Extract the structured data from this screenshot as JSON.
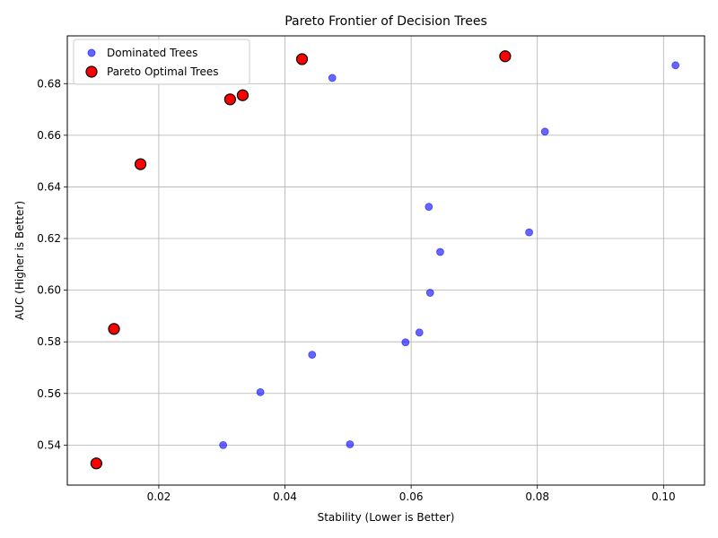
{
  "chart_data": {
    "type": "scatter",
    "title": "Pareto Frontier of Decision Trees",
    "xlabel": "Stability (Lower is Better)",
    "ylabel": "AUC (Higher is Better)",
    "xlim": [
      0.0055,
      0.1065
    ],
    "ylim": [
      0.5245,
      0.6985
    ],
    "xticks": [
      0.02,
      0.04,
      0.06,
      0.08,
      0.1
    ],
    "xtick_labels": [
      "0.02",
      "0.04",
      "0.06",
      "0.08",
      "0.10"
    ],
    "yticks": [
      0.54,
      0.56,
      0.58,
      0.6,
      0.62,
      0.64,
      0.66,
      0.68
    ],
    "ytick_labels": [
      "0.54",
      "0.56",
      "0.58",
      "0.60",
      "0.62",
      "0.64",
      "0.66",
      "0.68"
    ],
    "grid": true,
    "legend_position": "top-left",
    "series": [
      {
        "name": "Dominated Trees",
        "color": "#0000ff",
        "marker": "circle-small",
        "points": [
          {
            "x": 0.0475,
            "y": 0.6822
          },
          {
            "x": 0.1019,
            "y": 0.6871
          },
          {
            "x": 0.0812,
            "y": 0.6614
          },
          {
            "x": 0.0628,
            "y": 0.6323
          },
          {
            "x": 0.0787,
            "y": 0.6224
          },
          {
            "x": 0.0646,
            "y": 0.6148
          },
          {
            "x": 0.063,
            "y": 0.599
          },
          {
            "x": 0.0613,
            "y": 0.5836
          },
          {
            "x": 0.0591,
            "y": 0.5798
          },
          {
            "x": 0.0443,
            "y": 0.575
          },
          {
            "x": 0.0361,
            "y": 0.5605
          },
          {
            "x": 0.0302,
            "y": 0.54
          },
          {
            "x": 0.0503,
            "y": 0.5403
          }
        ]
      },
      {
        "name": "Pareto Optimal Trees",
        "color": "#ff0000",
        "marker": "circle-large-outlined",
        "points": [
          {
            "x": 0.0101,
            "y": 0.5329
          },
          {
            "x": 0.0129,
            "y": 0.585
          },
          {
            "x": 0.0171,
            "y": 0.6488
          },
          {
            "x": 0.0313,
            "y": 0.6739
          },
          {
            "x": 0.0333,
            "y": 0.6755
          },
          {
            "x": 0.0427,
            "y": 0.6895
          },
          {
            "x": 0.0749,
            "y": 0.6906
          }
        ]
      }
    ]
  }
}
